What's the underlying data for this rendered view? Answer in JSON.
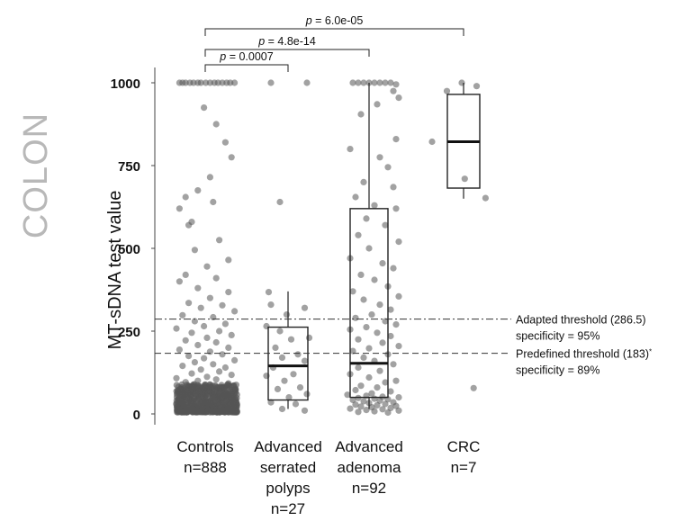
{
  "side_label": "COLON",
  "chart_data": {
    "type": "box",
    "ylabel": "MT-sDNA test value",
    "ylim": [
      0,
      1000
    ],
    "yticks": [
      0,
      250,
      500,
      750,
      1000
    ],
    "categories": [
      {
        "lines": [
          "Controls",
          "n=888"
        ]
      },
      {
        "lines": [
          "Advanced",
          "serrated",
          "polyps",
          "n=27"
        ]
      },
      {
        "lines": [
          "Advanced",
          "adenoma",
          "n=92"
        ]
      },
      {
        "lines": [
          "CRC",
          "n=7"
        ]
      }
    ],
    "boxes": [
      {
        "name": "Controls",
        "q1": 25,
        "median": 35,
        "q3": 60,
        "whisker_low": 15,
        "whisker_high": 100
      },
      {
        "name": "Advanced serrated polyps",
        "q1": 42,
        "median": 145,
        "q3": 262,
        "whisker_low": 15,
        "whisker_high": 370
      },
      {
        "name": "Advanced adenoma",
        "q1": 50,
        "median": 153,
        "q3": 620,
        "whisker_low": 15,
        "whisker_high": 1000
      },
      {
        "name": "CRC",
        "q1": 682,
        "median": 822,
        "q3": 965,
        "whisker_low": 650,
        "whisker_high": 1000
      }
    ],
    "thresholds": [
      {
        "value": 286.5,
        "style": "dashdot",
        "lines": [
          "Adapted threshold (286.5)",
          "specificity = 95%"
        ]
      },
      {
        "value": 183,
        "style": "dashed",
        "lines": [
          "Predefined threshold (183)",
          "specificity = 89%"
        ],
        "marker": "*"
      }
    ],
    "comparisons": [
      {
        "from": 0,
        "to": 1,
        "label": "p = 0.0007"
      },
      {
        "from": 0,
        "to": 2,
        "label": "p = 4.8e-14"
      },
      {
        "from": 0,
        "to": 3,
        "label": "p = 6.0e-05"
      }
    ],
    "points": {
      "serrated": [
        [
          0.1,
          1000
        ],
        [
          0.9,
          1000
        ],
        [
          0.3,
          640
        ],
        [
          0.05,
          368
        ],
        [
          0.1,
          330
        ],
        [
          0.85,
          320
        ],
        [
          0.45,
          300
        ],
        [
          0.0,
          265
        ],
        [
          0.3,
          250
        ],
        [
          0.95,
          230
        ],
        [
          0.55,
          225
        ],
        [
          0.2,
          200
        ],
        [
          0.7,
          180
        ],
        [
          0.35,
          170
        ],
        [
          0.85,
          160
        ],
        [
          0.15,
          140
        ],
        [
          0.6,
          120
        ],
        [
          0.0,
          115
        ],
        [
          0.4,
          100
        ],
        [
          0.75,
          80
        ],
        [
          0.25,
          75
        ],
        [
          0.9,
          60
        ],
        [
          0.5,
          50
        ],
        [
          0.1,
          35
        ],
        [
          0.65,
          30
        ],
        [
          0.35,
          15
        ],
        [
          0.85,
          10
        ]
      ],
      "adenoma": [
        [
          0.1,
          1000
        ],
        [
          0.2,
          1000
        ],
        [
          0.3,
          1000
        ],
        [
          0.4,
          1000
        ],
        [
          0.5,
          1000
        ],
        [
          0.6,
          1000
        ],
        [
          0.7,
          1000
        ],
        [
          0.8,
          1000
        ],
        [
          0.9,
          995
        ],
        [
          0.85,
          975
        ],
        [
          0.95,
          955
        ],
        [
          0.55,
          935
        ],
        [
          0.25,
          905
        ],
        [
          0.9,
          830
        ],
        [
          0.05,
          800
        ],
        [
          0.6,
          775
        ],
        [
          0.75,
          745
        ],
        [
          0.3,
          700
        ],
        [
          0.85,
          685
        ],
        [
          0.15,
          655
        ],
        [
          0.5,
          630
        ],
        [
          0.9,
          620
        ],
        [
          0.35,
          590
        ],
        [
          0.7,
          570
        ],
        [
          0.2,
          540
        ],
        [
          0.95,
          520
        ],
        [
          0.4,
          500
        ],
        [
          0.05,
          470
        ],
        [
          0.65,
          455
        ],
        [
          0.85,
          440
        ],
        [
          0.25,
          420
        ],
        [
          0.5,
          405
        ],
        [
          0.75,
          385
        ],
        [
          0.1,
          370
        ],
        [
          0.95,
          355
        ],
        [
          0.3,
          345
        ],
        [
          0.6,
          330
        ],
        [
          0.8,
          315
        ],
        [
          0.45,
          300
        ],
        [
          0.15,
          290
        ],
        [
          0.7,
          280
        ],
        [
          0.9,
          270
        ],
        [
          0.35,
          262
        ],
        [
          0.05,
          255
        ],
        [
          0.55,
          245
        ],
        [
          0.8,
          235
        ],
        [
          0.2,
          225
        ],
        [
          0.65,
          215
        ],
        [
          0.95,
          205
        ],
        [
          0.4,
          198
        ],
        [
          0.1,
          190
        ],
        [
          0.75,
          180
        ],
        [
          0.3,
          170
        ],
        [
          0.5,
          160
        ],
        [
          0.85,
          150
        ],
        [
          0.2,
          140
        ],
        [
          0.6,
          130
        ],
        [
          0.05,
          120
        ],
        [
          0.4,
          110
        ],
        [
          0.9,
          100
        ],
        [
          0.7,
          95
        ],
        [
          0.25,
          85
        ],
        [
          0.55,
          80
        ],
        [
          0.15,
          72
        ],
        [
          0.8,
          68
        ],
        [
          0.45,
          62
        ],
        [
          0.0,
          58
        ],
        [
          0.35,
          55
        ],
        [
          0.65,
          52
        ],
        [
          0.95,
          50
        ],
        [
          0.2,
          48
        ],
        [
          0.5,
          46
        ],
        [
          0.75,
          44
        ],
        [
          0.1,
          42
        ],
        [
          0.6,
          40
        ],
        [
          0.3,
          38
        ],
        [
          0.85,
          35
        ],
        [
          0.4,
          33
        ],
        [
          0.7,
          30
        ],
        [
          0.15,
          28
        ],
        [
          0.55,
          26
        ],
        [
          0.9,
          24
        ],
        [
          0.25,
          22
        ],
        [
          0.45,
          20
        ],
        [
          0.8,
          18
        ],
        [
          0.05,
          16
        ],
        [
          0.65,
          14
        ],
        [
          0.35,
          12
        ],
        [
          0.95,
          10
        ],
        [
          0.5,
          8
        ],
        [
          0.2,
          6
        ],
        [
          0.75,
          4
        ]
      ],
      "crc": [
        [
          0.5,
          1000
        ],
        [
          0.75,
          990
        ],
        [
          0.0,
          822
        ],
        [
          0.55,
          710
        ],
        [
          0.9,
          652
        ],
        [
          0.7,
          78
        ],
        [
          0.25,
          975
        ]
      ],
      "controls_sparse": [
        [
          0.05,
          1000
        ],
        [
          0.1,
          1000
        ],
        [
          0.15,
          1000
        ],
        [
          0.22,
          1000
        ],
        [
          0.28,
          1000
        ],
        [
          0.35,
          1000
        ],
        [
          0.4,
          1000
        ],
        [
          0.48,
          1000
        ],
        [
          0.55,
          1000
        ],
        [
          0.62,
          1000
        ],
        [
          0.68,
          1000
        ],
        [
          0.75,
          1000
        ],
        [
          0.82,
          1000
        ],
        [
          0.88,
          1000
        ],
        [
          0.95,
          1000
        ],
        [
          0.45,
          925
        ],
        [
          0.65,
          875
        ],
        [
          0.8,
          820
        ],
        [
          0.55,
          715
        ],
        [
          0.9,
          775
        ],
        [
          0.35,
          675
        ],
        [
          0.15,
          655
        ],
        [
          0.6,
          640
        ],
        [
          0.05,
          620
        ],
        [
          0.25,
          580
        ],
        [
          0.2,
          570
        ],
        [
          0.7,
          525
        ],
        [
          0.3,
          495
        ],
        [
          0.85,
          465
        ],
        [
          0.5,
          445
        ],
        [
          0.15,
          420
        ],
        [
          0.65,
          410
        ],
        [
          0.05,
          400
        ],
        [
          0.35,
          380
        ],
        [
          0.85,
          368
        ],
        [
          0.55,
          350
        ],
        [
          0.2,
          335
        ],
        [
          0.75,
          328
        ],
        [
          0.4,
          320
        ],
        [
          0.95,
          310
        ],
        [
          0.1,
          298
        ],
        [
          0.6,
          292
        ],
        [
          0.3,
          280
        ],
        [
          0.8,
          272
        ],
        [
          0.45,
          265
        ],
        [
          0.0,
          258
        ],
        [
          0.7,
          250
        ],
        [
          0.25,
          245
        ],
        [
          0.9,
          238
        ],
        [
          0.5,
          230
        ],
        [
          0.15,
          222
        ],
        [
          0.65,
          216
        ],
        [
          0.35,
          208
        ],
        [
          0.85,
          200
        ],
        [
          0.05,
          194
        ],
        [
          0.55,
          188
        ],
        [
          0.75,
          180
        ],
        [
          0.2,
          175
        ],
        [
          0.45,
          168
        ],
        [
          0.95,
          162
        ],
        [
          0.3,
          156
        ],
        [
          0.6,
          150
        ],
        [
          0.1,
          145
        ],
        [
          0.8,
          140
        ],
        [
          0.4,
          134
        ],
        [
          0.7,
          128
        ],
        [
          0.25,
          122
        ],
        [
          0.9,
          118
        ],
        [
          0.5,
          112
        ],
        [
          0.0,
          108
        ],
        [
          0.65,
          104
        ],
        [
          0.35,
          100
        ],
        [
          0.15,
          96
        ],
        [
          0.85,
          92
        ],
        [
          0.55,
          88
        ],
        [
          0.2,
          84
        ],
        [
          0.75,
          80
        ],
        [
          0.45,
          76
        ],
        [
          0.95,
          72
        ],
        [
          0.3,
          70
        ],
        [
          0.6,
          68
        ],
        [
          0.1,
          66
        ],
        [
          0.8,
          64
        ],
        [
          0.4,
          62
        ]
      ]
    },
    "controls_cloud": {
      "count": 620,
      "ymin": 5,
      "ymax": 90,
      "seed": 7
    }
  }
}
